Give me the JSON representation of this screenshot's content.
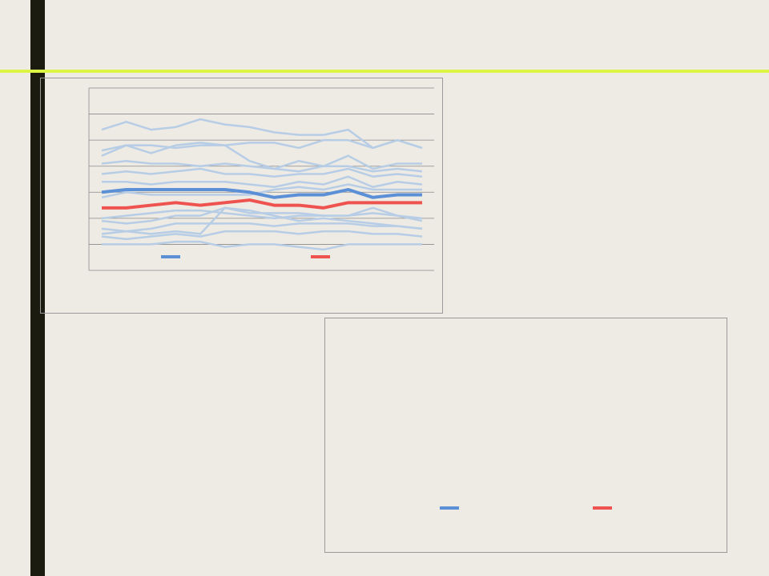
{
  "chart_data": [
    {
      "type": "line",
      "categories": [
        null,
        null,
        null,
        null,
        null,
        null,
        null,
        null,
        null,
        null,
        null,
        null,
        null,
        null
      ],
      "ylim": [
        0,
        7
      ],
      "yticks": [
        0,
        1,
        2,
        3,
        4,
        5,
        6,
        7
      ],
      "grid": true,
      "legend": "bottom",
      "series": [
        {
          "color": "#b7cde6",
          "line_width": 2.5,
          "values": [
            5.4,
            5.7,
            5.4,
            5.5,
            5.8,
            5.6,
            5.5,
            5.3,
            5.2,
            5.2,
            5.4,
            4.7,
            5.0,
            4.7
          ]
        },
        {
          "color": "#b7cde6",
          "line_width": 2.5,
          "values": [
            4.6,
            4.8,
            4.8,
            4.7,
            4.8,
            4.8,
            4.9,
            4.9,
            4.7,
            5.0,
            5.0,
            4.7,
            5.0,
            4.7
          ]
        },
        {
          "color": "#b7cde6",
          "line_width": 2.5,
          "values": [
            4.4,
            4.8,
            4.5,
            4.8,
            4.9,
            4.8,
            4.2,
            3.9,
            4.2,
            4.0,
            4.4,
            3.9,
            4.1,
            4.1
          ]
        },
        {
          "color": "#b7cde6",
          "line_width": 2.5,
          "values": [
            4.1,
            4.2,
            4.1,
            4.1,
            4.0,
            4.1,
            4.0,
            3.9,
            3.8,
            4.0,
            4.0,
            3.8,
            3.9,
            3.8
          ]
        },
        {
          "color": "#b7cde6",
          "line_width": 2.5,
          "values": [
            3.7,
            3.8,
            3.7,
            3.8,
            3.9,
            3.7,
            3.7,
            3.6,
            3.7,
            3.7,
            3.9,
            3.6,
            3.7,
            3.6
          ]
        },
        {
          "color": "#b7cde6",
          "line_width": 2.5,
          "values": [
            3.4,
            3.4,
            3.3,
            3.4,
            3.4,
            3.4,
            3.3,
            3.2,
            3.4,
            3.3,
            3.6,
            3.2,
            3.4,
            3.3
          ]
        },
        {
          "color": "#b7cde6",
          "line_width": 2.5,
          "values": [
            2.8,
            3.0,
            2.9,
            2.9,
            2.9,
            2.9,
            2.9,
            3.1,
            3.2,
            3.1,
            3.3,
            3.1,
            3.1,
            3.1
          ]
        },
        {
          "color": "#b7cde6",
          "line_width": 2.5,
          "values": [
            2.0,
            2.1,
            2.2,
            2.3,
            2.3,
            2.2,
            2.1,
            2.0,
            2.1,
            2.1,
            2.1,
            2.2,
            2.1,
            2.0
          ]
        },
        {
          "color": "#b7cde6",
          "line_width": 2.5,
          "values": [
            1.9,
            1.8,
            1.9,
            2.1,
            2.1,
            2.4,
            2.2,
            2.2,
            2.2,
            2.1,
            2.1,
            2.4,
            2.1,
            1.9
          ]
        },
        {
          "color": "#b7cde6",
          "line_width": 2.5,
          "values": [
            1.6,
            1.5,
            1.6,
            1.8,
            1.8,
            1.8,
            1.8,
            1.7,
            1.8,
            1.8,
            1.8,
            1.7,
            1.7,
            1.6
          ]
        },
        {
          "color": "#b7cde6",
          "line_width": 2.5,
          "values": [
            1.4,
            1.5,
            1.4,
            1.5,
            1.4,
            2.4,
            2.3,
            2.1,
            1.9,
            2.0,
            1.9,
            1.8,
            1.7,
            1.6
          ]
        },
        {
          "color": "#b7cde6",
          "line_width": 2.5,
          "values": [
            1.3,
            1.2,
            1.3,
            1.4,
            1.3,
            1.5,
            1.5,
            1.5,
            1.4,
            1.5,
            1.5,
            1.4,
            1.4,
            1.3
          ]
        },
        {
          "color": "#b7cde6",
          "line_width": 2.5,
          "values": [
            1.0,
            1.0,
            1.0,
            1.1,
            1.1,
            0.9,
            1.0,
            1.0,
            0.9,
            0.8,
            1.0,
            1.0,
            1.0,
            1.0
          ]
        },
        {
          "color": "#5b8fd6",
          "line_width": 4,
          "values": [
            3.0,
            3.1,
            3.1,
            3.1,
            3.1,
            3.1,
            3.0,
            2.8,
            2.9,
            2.9,
            3.1,
            2.8,
            2.9,
            2.9
          ]
        },
        {
          "color": "#ef5350",
          "line_width": 4,
          "values": [
            2.4,
            2.4,
            2.5,
            2.6,
            2.5,
            2.6,
            2.7,
            2.5,
            2.5,
            2.4,
            2.6,
            2.6,
            2.6,
            2.6
          ]
        }
      ]
    },
    {
      "type": "line",
      "legend": "bottom",
      "series": [
        {
          "color": "#5b8fd6",
          "line_width": 4,
          "values": []
        },
        {
          "color": "#ef5350",
          "line_width": 4,
          "values": []
        }
      ]
    }
  ]
}
